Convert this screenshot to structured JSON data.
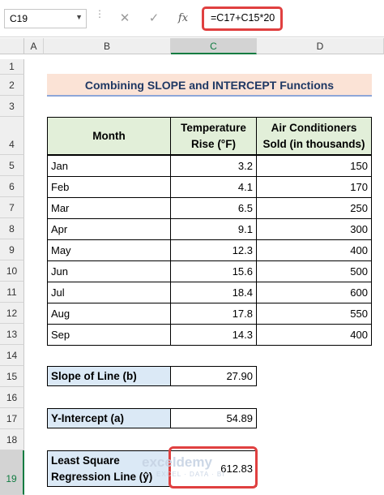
{
  "name_box": "C19",
  "formula": "=C17+C15*20",
  "toolbar": {
    "cancel": "✕",
    "enter": "✓",
    "fx": "fx"
  },
  "columns": [
    "A",
    "B",
    "C",
    "D"
  ],
  "rows": [
    "1",
    "2",
    "3",
    "4",
    "5",
    "6",
    "7",
    "8",
    "9",
    "10",
    "11",
    "12",
    "13",
    "14",
    "15",
    "16",
    "17",
    "18",
    "19"
  ],
  "title": "Combining SLOPE and INTERCEPT Functions",
  "table": {
    "headers": [
      "Month",
      "Temperature Rise (°F)",
      "Air Conditioners Sold (in thousands)"
    ],
    "rows": [
      {
        "month": "Jan",
        "temp": "3.2",
        "sold": "150"
      },
      {
        "month": "Feb",
        "temp": "4.1",
        "sold": "170"
      },
      {
        "month": "Mar",
        "temp": "6.5",
        "sold": "250"
      },
      {
        "month": "Apr",
        "temp": "9.1",
        "sold": "300"
      },
      {
        "month": "May",
        "temp": "12.3",
        "sold": "400"
      },
      {
        "month": "Jun",
        "temp": "15.6",
        "sold": "500"
      },
      {
        "month": "Jul",
        "temp": "18.4",
        "sold": "600"
      },
      {
        "month": "Aug",
        "temp": "17.8",
        "sold": "550"
      },
      {
        "month": "Sep",
        "temp": "14.3",
        "sold": "400"
      }
    ]
  },
  "slope": {
    "label": "Slope of Line (b)",
    "value": "27.90"
  },
  "intercept": {
    "label": "Y-Intercept (a)",
    "value": "54.89"
  },
  "regression": {
    "label": "Least Square Regression Line (ŷ)",
    "value": "612.83"
  },
  "watermark": {
    "brand": "exceldemy",
    "tagline": "EXCEL · DATA · BI"
  }
}
